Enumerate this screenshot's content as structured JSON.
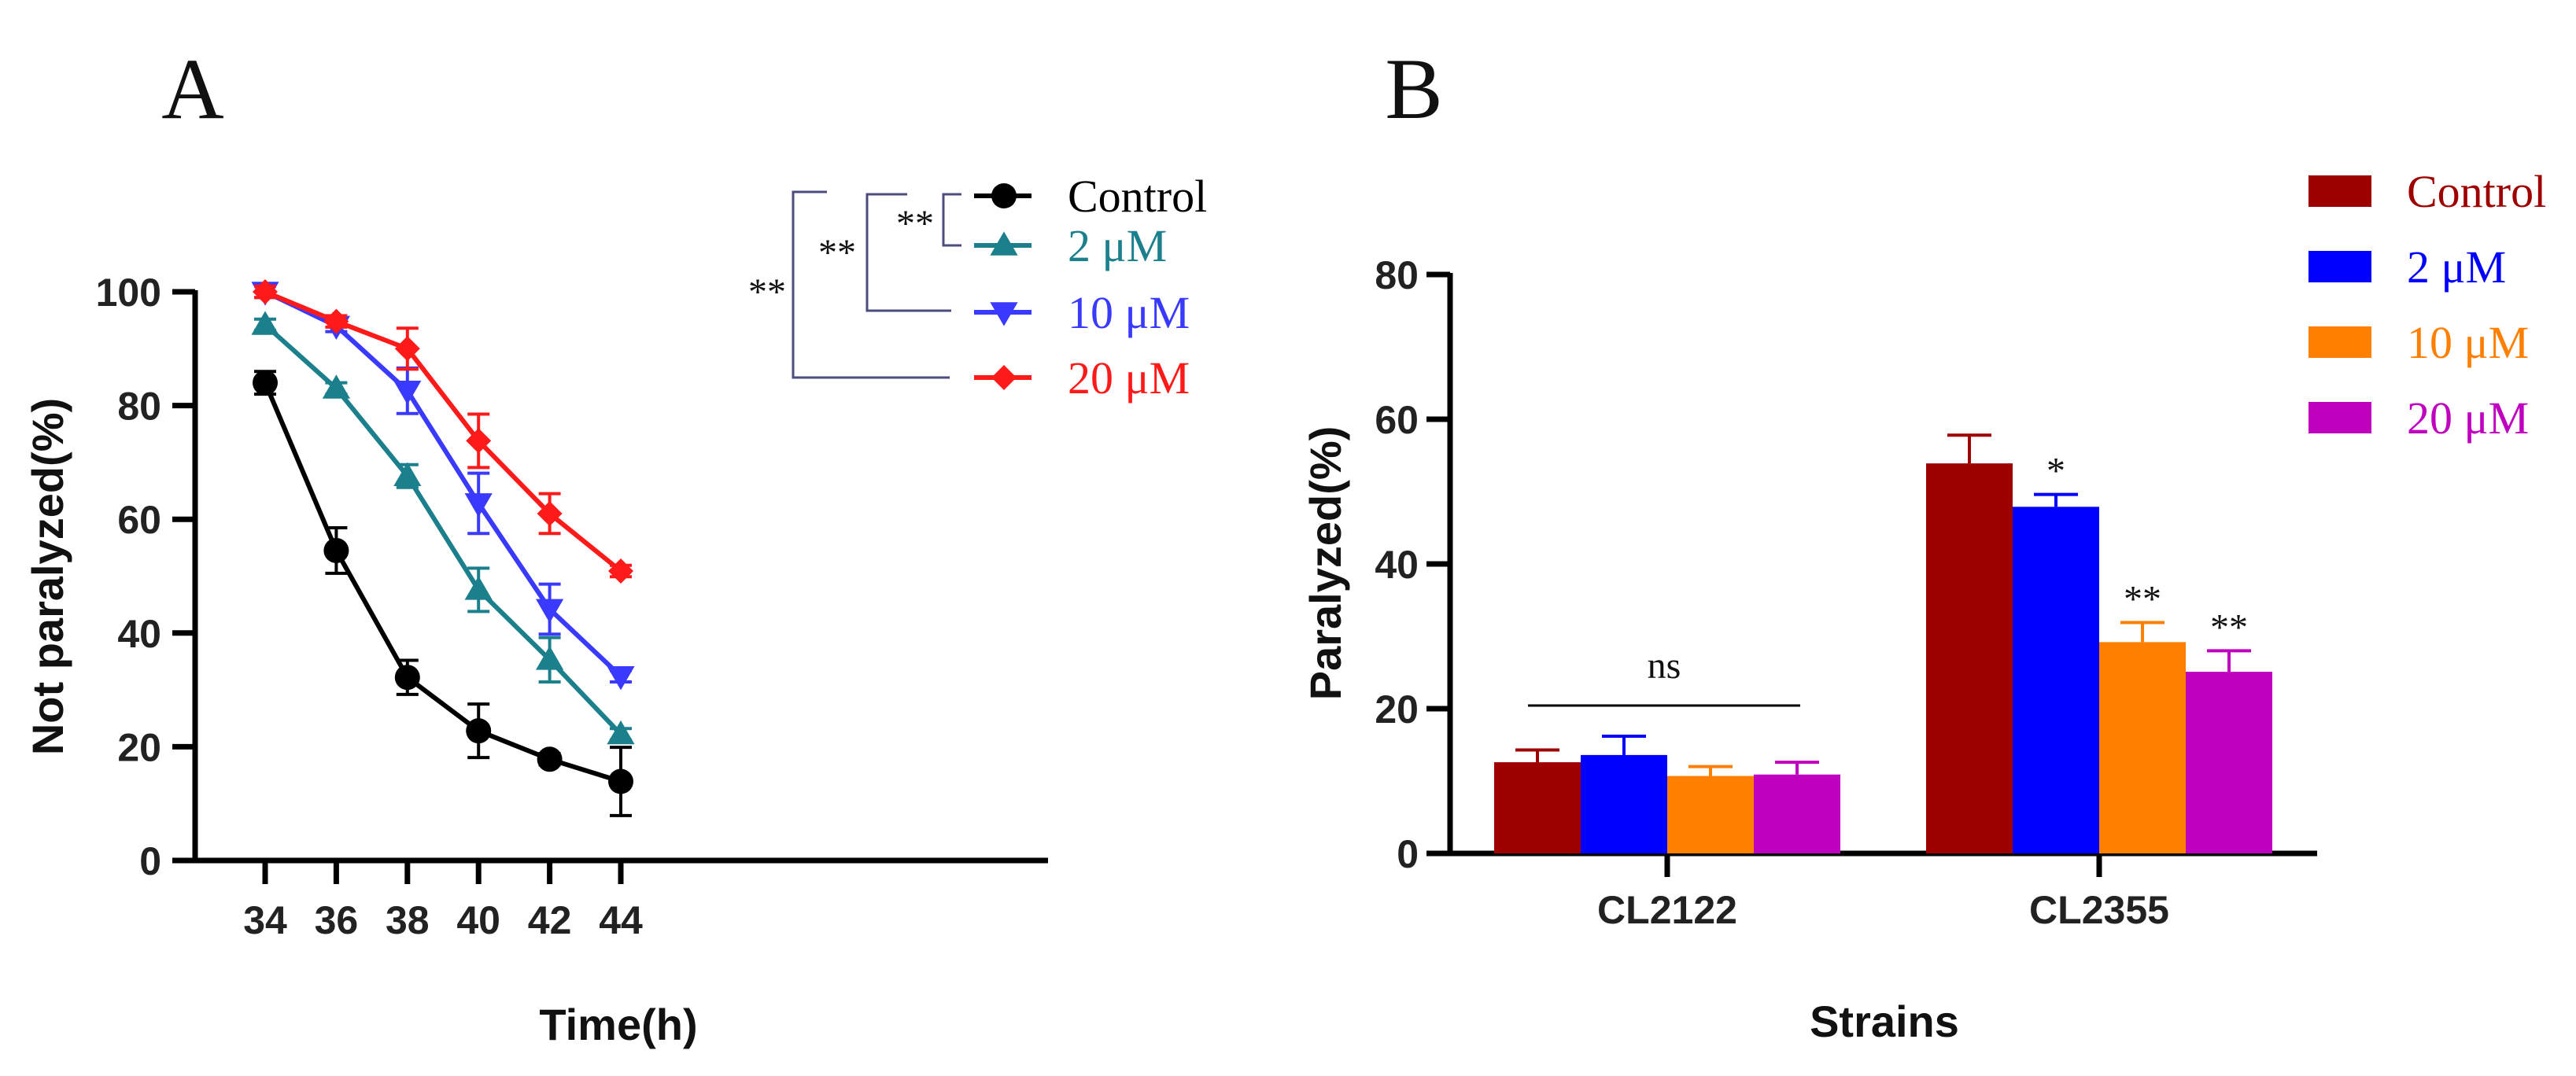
{
  "chart_data": [
    {
      "panel": "A",
      "type": "line",
      "xlabel": "Time(h)",
      "ylabel": "Not paralyzed(%)",
      "x": [
        34,
        36,
        38,
        40,
        42,
        44
      ],
      "xticks": [
        "34",
        "36",
        "38",
        "40",
        "42",
        "44"
      ],
      "yticks": [
        "0",
        "20",
        "40",
        "60",
        "80",
        "100"
      ],
      "ylim": [
        0,
        100
      ],
      "xlim": [
        33,
        45.6
      ],
      "legend_position": "top-right",
      "series": [
        {
          "name": "Control",
          "color": "#000000",
          "marker": "circle",
          "values": [
            84,
            54.5,
            32.2,
            22.8,
            17.8,
            13.9
          ],
          "errors": [
            2,
            4,
            3,
            4.7,
            1,
            6
          ]
        },
        {
          "name": "2 μM",
          "color": "#1b7f8c",
          "marker": "triangle-up",
          "values": [
            94.2,
            83,
            67.6,
            47.6,
            35.3,
            22.2
          ],
          "errors": [
            1,
            1,
            2,
            3.8,
            3.9,
            1
          ]
        },
        {
          "name": "10 μM",
          "color": "#3a3aff",
          "marker": "triangle-down",
          "values": [
            100,
            94,
            82.6,
            62.8,
            44.2,
            32.4
          ],
          "errors": [
            1,
            1,
            4,
            5.3,
            4.4,
            1
          ]
        },
        {
          "name": "20 μM",
          "color": "#ff1a1a",
          "marker": "diamond",
          "values": [
            100,
            94.8,
            90,
            73.8,
            61,
            50.9
          ],
          "errors": [
            1,
            1,
            3.6,
            4.7,
            3.5,
            1
          ]
        }
      ],
      "significance": [
        "**",
        "**",
        "**"
      ],
      "bracket_color": "#4b4b7d"
    },
    {
      "panel": "B",
      "type": "bar",
      "xlabel": "Strains",
      "ylabel": "Paralyzed(%)",
      "categories": [
        "CL2122",
        "CL2355"
      ],
      "yticks": [
        "0",
        "20",
        "40",
        "60",
        "80"
      ],
      "ylim": [
        0,
        80
      ],
      "legend_position": "top-right",
      "series": [
        {
          "name": "Control",
          "color": "#9e0000",
          "values": [
            12.6,
            53.9
          ],
          "errors": [
            1.7,
            3.9
          ],
          "annotations": [
            "",
            ""
          ]
        },
        {
          "name": "2 μM",
          "color": "#0000ff",
          "values": [
            13.6,
            47.9
          ],
          "errors": [
            2.6,
            1.7
          ],
          "annotations": [
            "",
            "*"
          ]
        },
        {
          "name": "10 μM",
          "color": "#ff8000",
          "values": [
            10.7,
            29.2
          ],
          "errors": [
            1.3,
            2.7
          ],
          "annotations": [
            "",
            "**"
          ]
        },
        {
          "name": "20 μM",
          "color": "#bf00bf",
          "values": [
            10.9,
            25.1
          ],
          "errors": [
            1.7,
            2.9
          ],
          "annotations": [
            "",
            "**"
          ]
        }
      ],
      "group_annotation": "ns"
    }
  ]
}
